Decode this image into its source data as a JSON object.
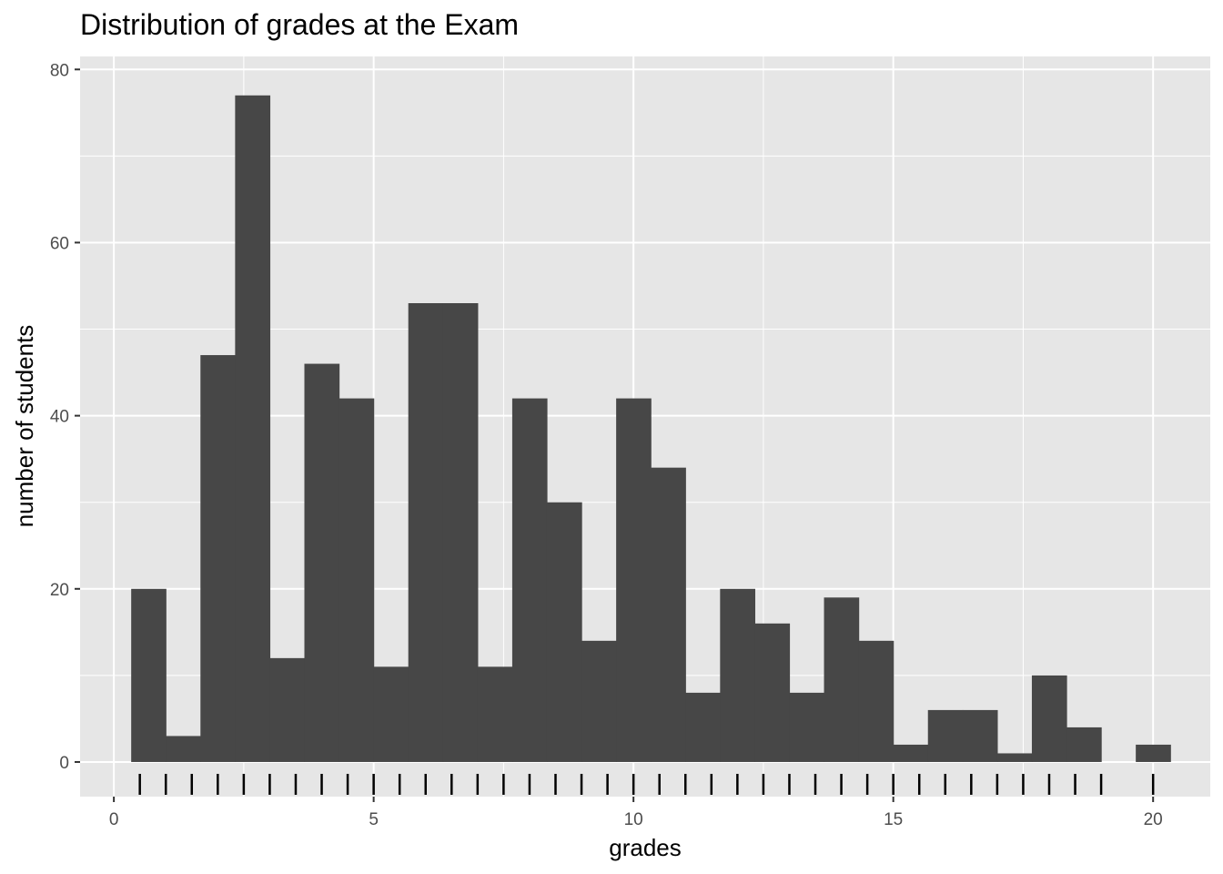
{
  "chart_data": {
    "type": "bar",
    "title": "Distribution of grades at the Exam",
    "xlabel": "grades",
    "ylabel": "number of students",
    "xlim": [
      -0.65,
      21.1
    ],
    "ylim": [
      -4,
      81.5
    ],
    "x_ticks": [
      0,
      5,
      10,
      15,
      20
    ],
    "y_ticks": [
      0,
      20,
      40,
      60,
      80
    ],
    "grid": true,
    "bin_width": 0.6667,
    "bin_centers": [
      0.667,
      1.333,
      2.0,
      2.667,
      3.333,
      4.0,
      4.667,
      5.333,
      6.0,
      6.667,
      7.333,
      8.0,
      8.667,
      9.333,
      10.0,
      10.667,
      11.333,
      12.0,
      12.667,
      13.333,
      14.0,
      14.667,
      15.333,
      16.0,
      16.667,
      17.333,
      18.0,
      18.667,
      19.333,
      20.0
    ],
    "values": [
      20,
      3,
      47,
      77,
      12,
      46,
      42,
      11,
      53,
      53,
      11,
      42,
      30,
      14,
      42,
      34,
      8,
      20,
      16,
      8,
      19,
      14,
      2,
      6,
      6,
      1,
      10,
      4,
      0,
      2
    ],
    "rug": [
      0.5,
      1.0,
      1.5,
      2.0,
      2.5,
      3.0,
      3.5,
      4.0,
      4.5,
      5.0,
      5.5,
      6.0,
      6.5,
      7.0,
      7.5,
      8.0,
      8.5,
      9.0,
      9.5,
      10.0,
      10.5,
      11.0,
      11.5,
      12.0,
      12.5,
      13.0,
      13.5,
      14.0,
      14.5,
      15.0,
      15.5,
      16.0,
      16.5,
      17.0,
      17.5,
      18.0,
      18.5,
      19.0,
      20.0
    ],
    "colors": {
      "bar": "#474747",
      "panel": "#e6e6e6",
      "grid": "#ffffff",
      "rug": "#000000"
    }
  }
}
